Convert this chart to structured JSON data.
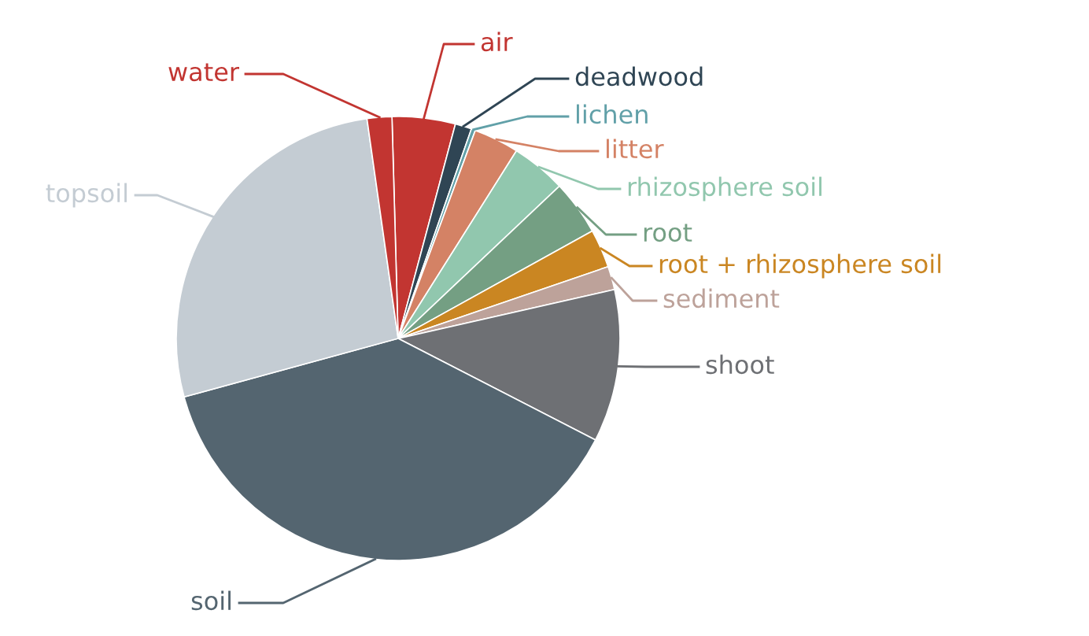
{
  "chart_data": {
    "type": "pie",
    "categories": [
      "air",
      "deadwood",
      "lichen",
      "litter",
      "rhizosphere soil",
      "root",
      "root + rhizosphere soil",
      "sediment",
      "shoot",
      "soil",
      "topsoil",
      "water"
    ],
    "values": [
      4.6,
      1.2,
      0.3,
      3.3,
      4.0,
      4.0,
      2.8,
      1.7,
      11.1,
      38.2,
      27.0,
      1.8
    ],
    "colors": [
      "#c23531",
      "#2f4554",
      "#61a0a8",
      "#d48265",
      "#91c7ae",
      "#749f83",
      "#ca8622",
      "#bda29a",
      "#6e7074",
      "#546570",
      "#c4ccd3",
      "#c23531"
    ],
    "legend": false
  }
}
